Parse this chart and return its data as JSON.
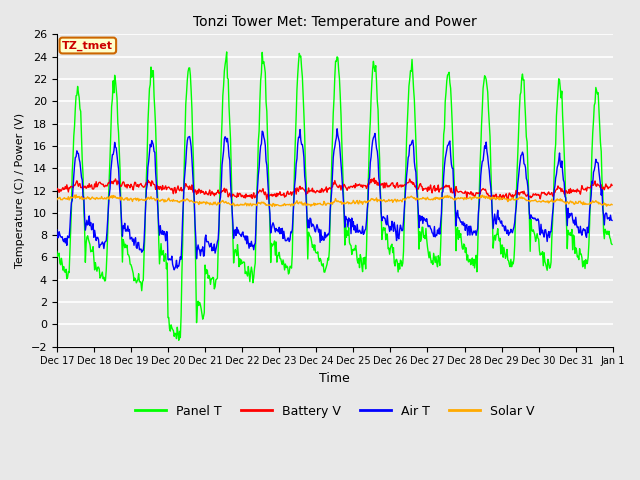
{
  "title": "Tonzi Tower Met: Temperature and Power",
  "xlabel": "Time",
  "ylabel": "Temperature (C) / Power (V)",
  "ylim": [
    -2,
    26
  ],
  "yticks": [
    -2,
    0,
    2,
    4,
    6,
    8,
    10,
    12,
    14,
    16,
    18,
    20,
    22,
    24,
    26
  ],
  "bg_color": "#e8e8e8",
  "grid_color": "white",
  "annotation_text": "TZ_tmet",
  "annotation_box_color": "#ffffcc",
  "annotation_border_color": "#cc6600",
  "annotation_text_color": "#cc0000",
  "legend_colors": [
    "#00ff00",
    "#ff0000",
    "#0000ff",
    "#ffaa00"
  ],
  "legend_labels": [
    "Panel T",
    "Battery V",
    "Air T",
    "Solar V"
  ],
  "line_width": 1.0,
  "n_days": 15,
  "n_points": 720,
  "tick_labels": [
    "Dec 17",
    "Dec 18",
    "Dec 19",
    "Dec 20",
    "Dec 21",
    "Dec 22",
    "Dec 23",
    "Dec 24",
    "Dec 25",
    "Dec 26",
    "Dec 27",
    "Dec 28",
    "Dec 29",
    "Dec 30",
    "Dec 31",
    "Jan 1"
  ]
}
